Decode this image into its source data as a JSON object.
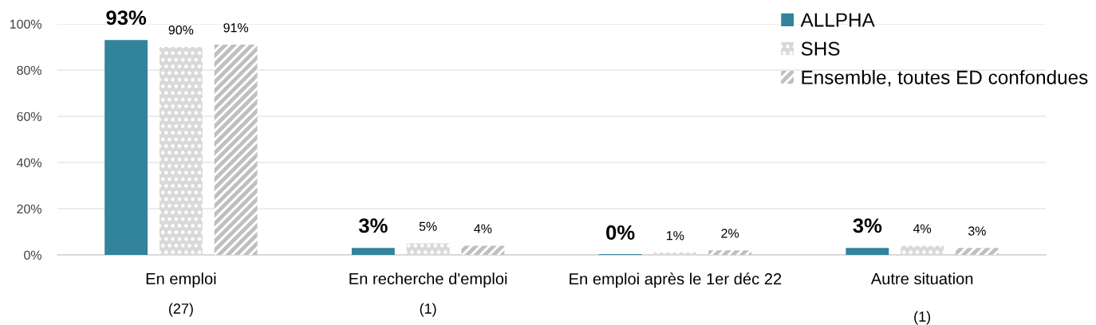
{
  "chart_data": {
    "type": "bar",
    "categories": [
      "En emploi",
      "En recherche d'emploi",
      "En emploi après le 1er déc 22",
      "Autre situation"
    ],
    "series": [
      {
        "name": "ALLPHA",
        "color": "#31849b",
        "values": [
          93,
          3,
          0,
          3
        ],
        "value_labels": [
          "93%",
          "3%",
          "0%",
          "3%"
        ]
      },
      {
        "name": "SHS",
        "color": "#d9d9d9",
        "values": [
          90,
          5,
          1,
          4
        ],
        "value_labels": [
          "90%",
          "5%",
          "1%",
          "4%"
        ]
      },
      {
        "name": "Ensemble, toutes ED confondues",
        "color": "#bfbfbf",
        "values": [
          91,
          4,
          2,
          3
        ],
        "value_labels": [
          "91%",
          "4%",
          "2%",
          "3%"
        ]
      }
    ],
    "ylim": [
      0,
      100
    ],
    "yticks": [
      {
        "value": 0,
        "label": "0%"
      },
      {
        "value": 20,
        "label": "20%"
      },
      {
        "value": 40,
        "label": "40%"
      },
      {
        "value": 60,
        "label": "60%"
      },
      {
        "value": 80,
        "label": "80%"
      },
      {
        "value": 100,
        "label": "100%"
      }
    ],
    "grid": "y",
    "legend": "top right",
    "annotations": [
      "(27)",
      "(1)",
      "(1)"
    ]
  }
}
